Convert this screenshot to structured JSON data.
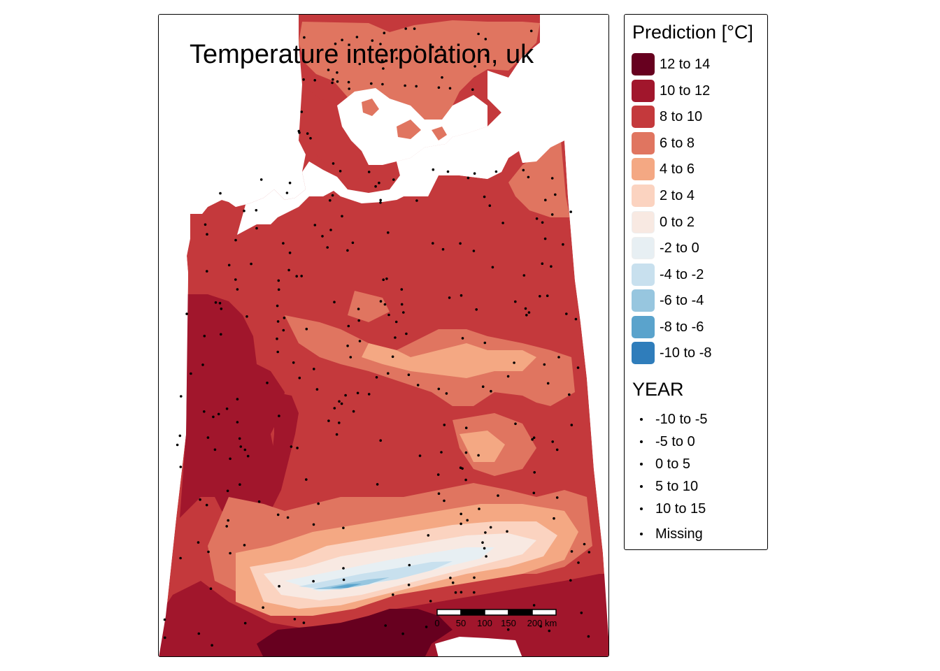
{
  "title": "Temperature interpolation, uk",
  "legend_fill": {
    "title": "Prediction [°C]",
    "items": [
      {
        "label": "12 to 14",
        "color": "#67001f"
      },
      {
        "label": "10 to 12",
        "color": "#a1162c"
      },
      {
        "label": "8 to 10",
        "color": "#c4393c"
      },
      {
        "label": "6 to 8",
        "color": "#e07560"
      },
      {
        "label": "4 to 6",
        "color": "#f4a883"
      },
      {
        "label": "2 to 4",
        "color": "#fbd3c0"
      },
      {
        "label": "0 to 2",
        "color": "#f8e9e2"
      },
      {
        "label": "-2 to 0",
        "color": "#e7eff3"
      },
      {
        "label": "-4 to -2",
        "color": "#c8e0ee"
      },
      {
        "label": "-6 to -4",
        "color": "#97c6df"
      },
      {
        "label": "-8 to -6",
        "color": "#5aa3cc"
      },
      {
        "label": "-10 to -8",
        "color": "#2f7dbb"
      }
    ]
  },
  "legend_points": {
    "title": "YEAR",
    "items": [
      {
        "label": "-10 to -5"
      },
      {
        "label": "-5 to 0"
      },
      {
        "label": "0 to 5"
      },
      {
        "label": "5 to 10"
      },
      {
        "label": "10 to 15"
      },
      {
        "label": "Missing"
      }
    ]
  },
  "scale_bar": {
    "labels": [
      "0",
      "50",
      "100",
      "150",
      "200 km"
    ]
  }
}
